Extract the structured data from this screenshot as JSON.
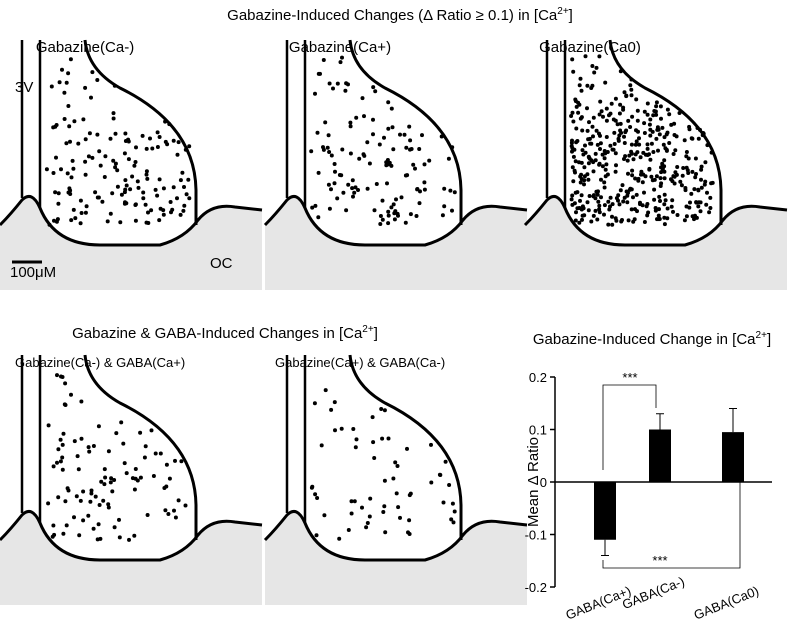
{
  "figure": {
    "title": [
      "Gabazine-Induced Changes (Δ Ratio ≥ 0.1) in [Ca",
      "2+",
      "]"
    ],
    "section_title": [
      "Gabazine & GABA-Induced Changes in [Ca",
      "2+",
      "]"
    ],
    "panels": [
      "Gabazine(Ca-)",
      "Gabazine(Ca+)",
      "Gabazine(Ca0)",
      "Gabazine(Ca-) & GABA(Ca+)",
      "Gabazine(Ca+) & GABA(Ca-)"
    ],
    "ventricle_label": "3V",
    "chiasm_label": "OC",
    "scale_label": "100μM"
  },
  "chart_data": {
    "type": "bar",
    "title": [
      "Gabazine-Induced Change in [Ca",
      "2+",
      "]"
    ],
    "y_label": "Mean Δ Ratio",
    "categories": [
      "GABA(Ca+)",
      "GABA(Ca-)",
      "GABA(Ca0)"
    ],
    "values": [
      -0.11,
      0.1,
      0.095
    ],
    "errors": [
      0.03,
      0.03,
      0.045
    ],
    "color": "#000000",
    "ylim": [
      -0.2,
      0.2
    ],
    "yticks": [
      0.2,
      0.1,
      0,
      -0.1,
      -0.2
    ],
    "annotations": [
      "***",
      "***"
    ]
  }
}
